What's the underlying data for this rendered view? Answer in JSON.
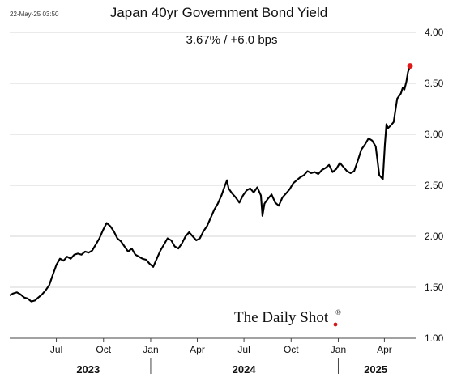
{
  "chart_data": {
    "type": "line",
    "title": "Japan 40yr Government Bond Yield",
    "subtitle": "3.67%  /  +6.0 bps",
    "timestamp": "22-May-25 03:50",
    "brand": "The Daily Shot",
    "brand_mark": "®",
    "xlabel": "",
    "ylabel": "",
    "ylim": [
      1.0,
      4.0
    ],
    "xlim": [
      "2023-04-01",
      "2025-06-01"
    ],
    "y_ticks": [
      "1.00",
      "1.50",
      "2.00",
      "2.50",
      "3.00",
      "3.50",
      "4.00"
    ],
    "x_ticks": [
      {
        "label": "Jul",
        "date": "2023-07-01"
      },
      {
        "label": "Oct",
        "date": "2023-10-01"
      },
      {
        "label": "Jan",
        "date": "2024-01-01"
      },
      {
        "label": "Apr",
        "date": "2024-04-01"
      },
      {
        "label": "Jul",
        "date": "2024-07-01"
      },
      {
        "label": "Oct",
        "date": "2024-10-01"
      },
      {
        "label": "Jan",
        "date": "2025-01-01"
      },
      {
        "label": "Apr",
        "date": "2025-04-01"
      }
    ],
    "years": [
      {
        "label": "2023",
        "center": "2023-09-01"
      },
      {
        "label": "2024",
        "center": "2024-07-01"
      },
      {
        "label": "2025",
        "center": "2025-03-15"
      }
    ],
    "year_dividers": [
      "2024-01-01",
      "2025-01-01"
    ],
    "grid": "horizontal",
    "line_color": "#000000",
    "last_point_color": "#e01818",
    "series": [
      {
        "x": [
          "2023-04-01",
          "2023-04-08",
          "2023-04-15",
          "2023-04-22",
          "2023-04-29",
          "2023-05-06",
          "2023-05-13",
          "2023-05-20",
          "2023-05-27",
          "2023-06-03",
          "2023-06-10",
          "2023-06-17",
          "2023-06-24",
          "2023-07-01",
          "2023-07-08",
          "2023-07-15",
          "2023-07-22",
          "2023-07-29",
          "2023-08-05",
          "2023-08-12",
          "2023-08-19",
          "2023-08-26",
          "2023-09-02",
          "2023-09-09",
          "2023-09-16",
          "2023-09-23",
          "2023-09-30",
          "2023-10-07",
          "2023-10-14",
          "2023-10-21",
          "2023-10-28",
          "2023-11-04",
          "2023-11-11",
          "2023-11-18",
          "2023-11-25",
          "2023-12-02",
          "2023-12-09",
          "2023-12-16",
          "2023-12-23",
          "2023-12-30",
          "2024-01-06",
          "2024-01-13",
          "2024-01-20",
          "2024-01-27",
          "2024-02-03",
          "2024-02-10",
          "2024-02-17",
          "2024-02-24",
          "2024-03-02",
          "2024-03-09",
          "2024-03-16",
          "2024-03-23",
          "2024-03-30",
          "2024-04-06",
          "2024-04-13",
          "2024-04-20",
          "2024-04-27",
          "2024-05-04",
          "2024-05-11",
          "2024-05-18",
          "2024-05-25",
          "2024-05-29",
          "2024-06-01",
          "2024-06-08",
          "2024-06-15",
          "2024-06-22",
          "2024-06-29",
          "2024-07-06",
          "2024-07-13",
          "2024-07-20",
          "2024-07-27",
          "2024-08-03",
          "2024-08-06",
          "2024-08-10",
          "2024-08-17",
          "2024-08-24",
          "2024-08-31",
          "2024-09-07",
          "2024-09-14",
          "2024-09-21",
          "2024-09-28",
          "2024-10-05",
          "2024-10-12",
          "2024-10-19",
          "2024-10-26",
          "2024-11-02",
          "2024-11-09",
          "2024-11-16",
          "2024-11-23",
          "2024-11-30",
          "2024-12-07",
          "2024-12-14",
          "2024-12-21",
          "2024-12-28",
          "2025-01-04",
          "2025-01-11",
          "2025-01-18",
          "2025-01-25",
          "2025-02-01",
          "2025-02-08",
          "2025-02-15",
          "2025-02-22",
          "2025-03-01",
          "2025-03-08",
          "2025-03-15",
          "2025-03-22",
          "2025-03-29",
          "2025-04-02",
          "2025-04-05",
          "2025-04-08",
          "2025-04-12",
          "2025-04-19",
          "2025-04-26",
          "2025-05-03",
          "2025-05-07",
          "2025-05-10",
          "2025-05-14",
          "2025-05-17",
          "2025-05-21"
        ],
        "values": [
          1.42,
          1.44,
          1.45,
          1.43,
          1.4,
          1.39,
          1.36,
          1.37,
          1.4,
          1.43,
          1.47,
          1.52,
          1.62,
          1.72,
          1.78,
          1.76,
          1.8,
          1.78,
          1.82,
          1.83,
          1.82,
          1.85,
          1.84,
          1.86,
          1.92,
          1.98,
          2.06,
          2.13,
          2.1,
          2.05,
          1.98,
          1.95,
          1.9,
          1.85,
          1.88,
          1.82,
          1.8,
          1.78,
          1.77,
          1.73,
          1.7,
          1.78,
          1.86,
          1.92,
          1.98,
          1.96,
          1.9,
          1.88,
          1.93,
          2.0,
          2.04,
          2.0,
          1.96,
          1.98,
          2.05,
          2.1,
          2.18,
          2.26,
          2.32,
          2.4,
          2.5,
          2.55,
          2.47,
          2.42,
          2.38,
          2.33,
          2.4,
          2.45,
          2.47,
          2.43,
          2.48,
          2.4,
          2.2,
          2.32,
          2.37,
          2.41,
          2.33,
          2.3,
          2.38,
          2.42,
          2.46,
          2.52,
          2.55,
          2.58,
          2.6,
          2.64,
          2.62,
          2.63,
          2.61,
          2.65,
          2.67,
          2.7,
          2.63,
          2.66,
          2.72,
          2.68,
          2.64,
          2.62,
          2.64,
          2.74,
          2.85,
          2.9,
          2.96,
          2.94,
          2.88,
          2.6,
          2.56,
          2.9,
          3.1,
          3.06,
          3.08,
          3.12,
          3.35,
          3.4,
          3.46,
          3.44,
          3.52,
          3.61,
          3.67
        ]
      }
    ]
  }
}
